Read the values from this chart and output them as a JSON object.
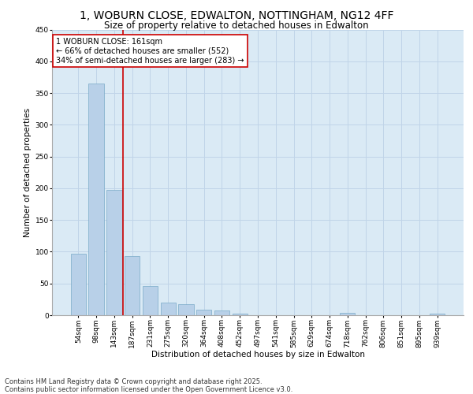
{
  "title": "1, WOBURN CLOSE, EDWALTON, NOTTINGHAM, NG12 4FF",
  "subtitle": "Size of property relative to detached houses in Edwalton",
  "xlabel": "Distribution of detached houses by size in Edwalton",
  "ylabel": "Number of detached properties",
  "categories": [
    "54sqm",
    "98sqm",
    "143sqm",
    "187sqm",
    "231sqm",
    "275sqm",
    "320sqm",
    "364sqm",
    "408sqm",
    "452sqm",
    "497sqm",
    "541sqm",
    "585sqm",
    "629sqm",
    "674sqm",
    "718sqm",
    "762sqm",
    "806sqm",
    "851sqm",
    "895sqm",
    "939sqm"
  ],
  "values": [
    97,
    365,
    197,
    93,
    46,
    20,
    17,
    9,
    7,
    3,
    0,
    0,
    0,
    0,
    0,
    4,
    0,
    0,
    0,
    0,
    3
  ],
  "bar_color": "#b8d0e8",
  "bar_edge_color": "#7aaac8",
  "vline_x_index": 2.5,
  "vline_color": "#cc0000",
  "annotation_text": "1 WOBURN CLOSE: 161sqm\n← 66% of detached houses are smaller (552)\n34% of semi-detached houses are larger (283) →",
  "annotation_box_facecolor": "#ffffff",
  "annotation_box_edge_color": "#cc0000",
  "grid_color": "#c0d4e8",
  "plot_bg_color": "#daeaf5",
  "footer_line1": "Contains HM Land Registry data © Crown copyright and database right 2025.",
  "footer_line2": "Contains public sector information licensed under the Open Government Licence v3.0.",
  "ylim": [
    0,
    450
  ],
  "yticks": [
    0,
    50,
    100,
    150,
    200,
    250,
    300,
    350,
    400,
    450
  ],
  "title_fontsize": 10,
  "subtitle_fontsize": 8.5,
  "axis_label_fontsize": 7.5,
  "tick_fontsize": 6.5,
  "footer_fontsize": 6,
  "annotation_fontsize": 7
}
